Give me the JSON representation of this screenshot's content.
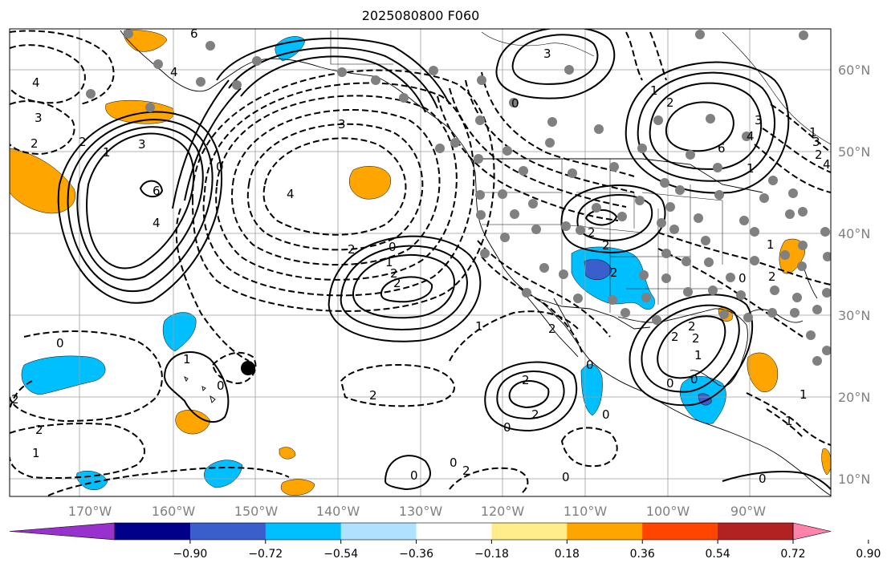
{
  "title": "2025080800 F060",
  "lon_labels": [
    "170°W",
    "160°W",
    "150°W",
    "140°W",
    "130°W",
    "120°W",
    "110°W",
    "100°W",
    "90°W"
  ],
  "lat_labels": [
    "60°N",
    "50°N",
    "40°N",
    "30°N",
    "20°N",
    "10°N"
  ],
  "contour_labels": [
    "6",
    "4",
    "3",
    "2",
    "2",
    "1",
    "3",
    "4",
    "6",
    "0",
    "3",
    "4",
    "4",
    "2",
    "0",
    "1",
    "2",
    "2",
    "0",
    "1",
    "2",
    "2",
    "0",
    "1",
    "2",
    "2",
    "0",
    "2",
    "2",
    "3",
    "2",
    "2",
    "6",
    "4",
    "3",
    "2",
    "1",
    "0",
    "1",
    "2",
    "2",
    "2",
    "0",
    "1",
    "2",
    "0",
    "1",
    "1",
    "0",
    "2",
    "1",
    "2",
    "0",
    "0",
    "2",
    "1",
    "0",
    "3",
    "4",
    "1",
    "0",
    "0",
    "0"
  ],
  "colorbar": {
    "ticks": [
      "−0.90",
      "−0.72",
      "−0.54",
      "−0.36",
      "−0.18",
      "0.18",
      "0.36",
      "0.54",
      "0.72",
      "0.90"
    ],
    "colors": [
      "#9932cc",
      "#00008b",
      "#3a5fcd",
      "#00bfff",
      "#b0e2ff",
      "#ffffff",
      "#ffec8b",
      "#ffa500",
      "#ff4500",
      "#b22222",
      "#ff82ab"
    ]
  },
  "marker_label": ""
}
